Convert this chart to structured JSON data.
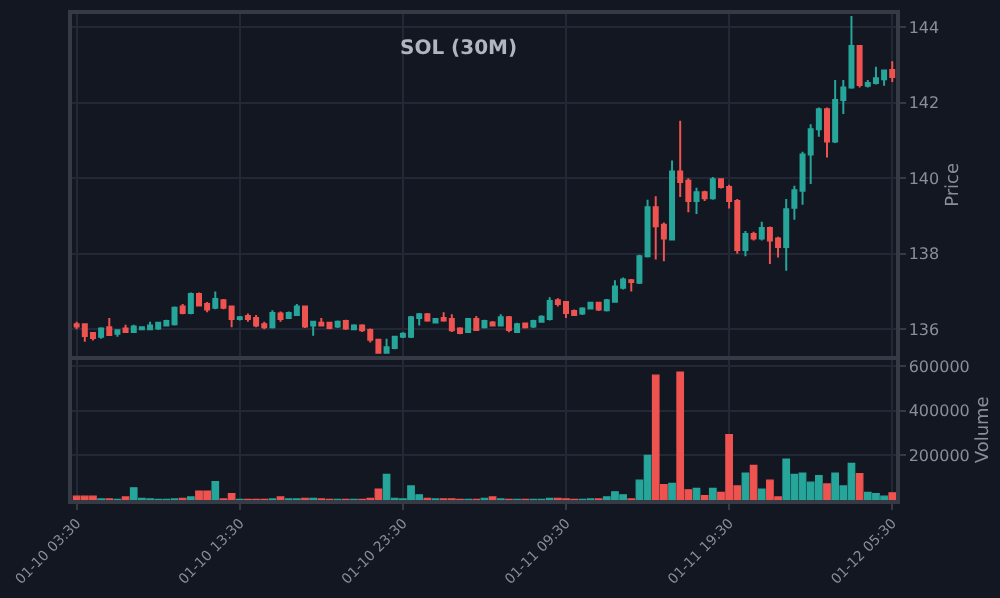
{
  "chart_data": [
    {
      "type": "candlestick",
      "title": "SOL (30M)",
      "ylabel": "Price",
      "ylim": [
        135.3,
        144.35
      ],
      "yticks": [
        136,
        138,
        140,
        142,
        144
      ],
      "grid": true,
      "tick_labels": "y",
      "categories": [
        "01-10 03:30",
        null,
        null,
        null,
        null,
        null,
        null,
        null,
        null,
        null,
        null,
        null,
        null,
        null,
        null,
        null,
        null,
        null,
        null,
        null,
        "01-10 13:30",
        null,
        null,
        null,
        null,
        null,
        null,
        null,
        null,
        null,
        null,
        null,
        null,
        null,
        null,
        null,
        null,
        null,
        null,
        null,
        "01-10 23:30",
        null,
        null,
        null,
        null,
        null,
        null,
        null,
        null,
        null,
        null,
        null,
        null,
        null,
        null,
        null,
        null,
        null,
        null,
        null,
        "01-11 09:30",
        null,
        null,
        null,
        null,
        null,
        null,
        null,
        null,
        null,
        null,
        null,
        null,
        null,
        null,
        null,
        null,
        null,
        null,
        null,
        "01-11 19:30",
        null,
        null,
        null,
        null,
        null,
        null,
        null,
        null,
        null,
        null,
        null,
        null,
        null,
        null,
        null,
        null,
        null,
        null,
        null,
        "01-12 05:30"
      ],
      "ohlc": [
        [
          136.13,
          136.2,
          136.0,
          136.07
        ],
        [
          136.13,
          136.15,
          135.67,
          135.82
        ],
        [
          135.9,
          135.93,
          135.7,
          135.77
        ],
        [
          135.8,
          136.05,
          135.75,
          136.02
        ],
        [
          136.05,
          136.3,
          135.82,
          135.85
        ],
        [
          135.88,
          136.0,
          135.8,
          135.97
        ],
        [
          136.02,
          136.12,
          135.9,
          135.93
        ],
        [
          135.93,
          136.12,
          135.9,
          136.07
        ],
        [
          136.0,
          136.08,
          135.97,
          136.05
        ],
        [
          136.0,
          136.2,
          135.97,
          136.1
        ],
        [
          136.02,
          136.2,
          135.98,
          136.17
        ],
        [
          136.1,
          136.25,
          136.07,
          136.22
        ],
        [
          136.13,
          136.6,
          136.1,
          136.57
        ],
        [
          136.6,
          136.67,
          136.4,
          136.43
        ],
        [
          136.43,
          136.97,
          136.4,
          136.93
        ],
        [
          136.93,
          136.97,
          136.6,
          136.63
        ],
        [
          136.67,
          136.72,
          136.45,
          136.52
        ],
        [
          136.57,
          137.0,
          136.53,
          136.8
        ],
        [
          136.77,
          136.8,
          136.53,
          136.57
        ],
        [
          136.6,
          136.63,
          136.05,
          136.27
        ],
        [
          136.27,
          136.35,
          136.23,
          136.32
        ],
        [
          136.35,
          136.42,
          136.2,
          136.27
        ],
        [
          136.3,
          136.38,
          136.05,
          136.1
        ],
        [
          136.13,
          136.2,
          136.0,
          136.05
        ],
        [
          136.05,
          136.5,
          136.02,
          136.43
        ],
        [
          136.42,
          136.47,
          136.2,
          136.27
        ],
        [
          136.3,
          136.47,
          136.27,
          136.43
        ],
        [
          136.38,
          136.67,
          136.35,
          136.6
        ],
        [
          136.6,
          136.63,
          136.03,
          136.07
        ],
        [
          136.1,
          136.22,
          135.83,
          136.2
        ],
        [
          136.17,
          136.3,
          136.07,
          136.1
        ],
        [
          136.17,
          136.2,
          136.0,
          136.03
        ],
        [
          136.07,
          136.23,
          136.03,
          136.2
        ],
        [
          136.22,
          136.25,
          135.98,
          136.02
        ],
        [
          136.0,
          136.13,
          135.97,
          136.1
        ],
        [
          136.1,
          136.13,
          135.93,
          135.97
        ],
        [
          135.98,
          136.02,
          135.65,
          135.72
        ],
        [
          135.72,
          135.75,
          135.35,
          135.38
        ],
        [
          135.38,
          135.75,
          135.35,
          135.52
        ],
        [
          135.5,
          135.83,
          135.47,
          135.8
        ],
        [
          135.8,
          135.92,
          135.77,
          135.88
        ],
        [
          135.8,
          136.35,
          135.77,
          136.32
        ],
        [
          136.3,
          136.43,
          136.1,
          136.4
        ],
        [
          136.4,
          136.43,
          136.2,
          136.23
        ],
        [
          136.18,
          136.3,
          136.15,
          136.27
        ],
        [
          136.3,
          136.45,
          136.2,
          136.23
        ],
        [
          136.27,
          136.4,
          135.93,
          135.97
        ],
        [
          136.02,
          136.05,
          135.87,
          135.9
        ],
        [
          135.93,
          136.3,
          135.9,
          136.27
        ],
        [
          136.27,
          136.35,
          135.95,
          135.98
        ],
        [
          136.05,
          136.25,
          136.02,
          136.22
        ],
        [
          136.18,
          136.22,
          136.07,
          136.1
        ],
        [
          136.1,
          136.4,
          136.07,
          136.32
        ],
        [
          136.32,
          136.35,
          135.92,
          135.98
        ],
        [
          135.93,
          136.17,
          135.9,
          136.13
        ],
        [
          136.15,
          136.18,
          136.02,
          136.05
        ],
        [
          136.07,
          136.25,
          136.03,
          136.22
        ],
        [
          136.2,
          136.37,
          136.17,
          136.33
        ],
        [
          136.27,
          136.85,
          136.23,
          136.75
        ],
        [
          136.77,
          136.82,
          136.6,
          136.67
        ],
        [
          136.72,
          136.75,
          136.3,
          136.43
        ],
        [
          136.48,
          136.52,
          136.35,
          136.38
        ],
        [
          136.42,
          136.58,
          136.38,
          136.55
        ],
        [
          136.55,
          136.73,
          136.52,
          136.7
        ],
        [
          136.7,
          136.73,
          136.48,
          136.52
        ],
        [
          136.5,
          136.8,
          136.47,
          136.77
        ],
        [
          136.73,
          137.3,
          136.7,
          137.13
        ],
        [
          137.1,
          137.37,
          137.05,
          137.32
        ],
        [
          137.3,
          137.33,
          137.0,
          137.25
        ],
        [
          137.23,
          137.97,
          137.2,
          137.93
        ],
        [
          137.93,
          139.43,
          137.9,
          139.23
        ],
        [
          139.23,
          139.52,
          137.85,
          138.73
        ],
        [
          138.77,
          138.83,
          137.8,
          138.4
        ],
        [
          138.38,
          140.47,
          138.35,
          140.18
        ],
        [
          140.18,
          141.52,
          139.5,
          139.9
        ],
        [
          139.93,
          140.0,
          139.1,
          139.4
        ],
        [
          139.4,
          139.75,
          139.05,
          139.63
        ],
        [
          139.63,
          139.67,
          139.4,
          139.47
        ],
        [
          139.47,
          140.03,
          139.43,
          139.97
        ],
        [
          139.97,
          140.0,
          139.73,
          139.77
        ],
        [
          139.77,
          139.83,
          139.2,
          139.4
        ],
        [
          139.4,
          139.45,
          138.0,
          138.1
        ],
        [
          138.1,
          138.6,
          137.93,
          138.52
        ],
        [
          138.52,
          138.58,
          138.35,
          138.4
        ],
        [
          138.4,
          138.85,
          138.35,
          138.68
        ],
        [
          138.68,
          138.72,
          137.73,
          138.35
        ],
        [
          138.4,
          138.45,
          137.9,
          138.18
        ],
        [
          138.18,
          139.45,
          137.55,
          139.18
        ],
        [
          139.22,
          139.8,
          138.9,
          139.68
        ],
        [
          139.67,
          140.7,
          139.3,
          140.63
        ],
        [
          140.63,
          141.43,
          139.85,
          141.3
        ],
        [
          141.3,
          141.87,
          141.1,
          141.83
        ],
        [
          141.83,
          141.87,
          140.55,
          140.97
        ],
        [
          140.97,
          142.6,
          140.93,
          142.07
        ],
        [
          142.07,
          142.6,
          141.7,
          142.4
        ],
        [
          142.4,
          144.3,
          142.37,
          143.5
        ],
        [
          143.5,
          143.53,
          142.4,
          142.47
        ],
        [
          142.45,
          142.6,
          142.4,
          142.52
        ],
        [
          142.52,
          142.95,
          142.48,
          142.65
        ],
        [
          142.62,
          142.88,
          142.45,
          142.85
        ],
        [
          142.87,
          143.1,
          142.55,
          142.68
        ]
      ],
      "colors": [
        "#ef5350",
        "#ef5350",
        "#ef5350",
        "#26a69a",
        "#ef5350",
        "#26a69a",
        "#ef5350",
        "#26a69a",
        "#26a69a",
        "#26a69a",
        "#26a69a",
        "#26a69a",
        "#26a69a",
        "#ef5350",
        "#26a69a",
        "#ef5350",
        "#ef5350",
        "#26a69a",
        "#ef5350",
        "#ef5350",
        "#26a69a",
        "#ef5350",
        "#ef5350",
        "#ef5350",
        "#26a69a",
        "#ef5350",
        "#26a69a",
        "#26a69a",
        "#ef5350",
        "#26a69a",
        "#ef5350",
        "#ef5350",
        "#26a69a",
        "#ef5350",
        "#26a69a",
        "#ef5350",
        "#ef5350",
        "#ef5350",
        "#26a69a",
        "#26a69a",
        "#26a69a",
        "#26a69a",
        "#26a69a",
        "#ef5350",
        "#26a69a",
        "#ef5350",
        "#ef5350",
        "#ef5350",
        "#26a69a",
        "#ef5350",
        "#26a69a",
        "#ef5350",
        "#26a69a",
        "#ef5350",
        "#26a69a",
        "#ef5350",
        "#26a69a",
        "#26a69a",
        "#26a69a",
        "#ef5350",
        "#ef5350",
        "#ef5350",
        "#26a69a",
        "#26a69a",
        "#ef5350",
        "#26a69a",
        "#26a69a",
        "#26a69a",
        "#ef5350",
        "#26a69a",
        "#26a69a",
        "#ef5350",
        "#ef5350",
        "#26a69a",
        "#ef5350",
        "#ef5350",
        "#26a69a",
        "#ef5350",
        "#26a69a",
        "#ef5350",
        "#ef5350",
        "#ef5350",
        "#26a69a",
        "#ef5350",
        "#26a69a",
        "#ef5350",
        "#ef5350",
        "#26a69a",
        "#26a69a",
        "#26a69a",
        "#26a69a",
        "#26a69a",
        "#ef5350",
        "#26a69a",
        "#26a69a",
        "#26a69a",
        "#ef5350",
        "#26a69a",
        "#26a69a",
        "#26a69a",
        "#ef5350"
      ]
    },
    {
      "type": "bar",
      "ylabel": "Volume",
      "ylim": [
        0,
        630000
      ],
      "yticks": [
        200000,
        400000,
        600000
      ],
      "grid": true,
      "categories": [
        "01-10 03:30",
        null,
        null,
        null,
        null,
        null,
        null,
        null,
        null,
        null,
        null,
        null,
        null,
        null,
        null,
        null,
        null,
        null,
        null,
        null,
        "01-10 13:30",
        null,
        null,
        null,
        null,
        null,
        null,
        null,
        null,
        null,
        null,
        null,
        null,
        null,
        null,
        null,
        null,
        null,
        null,
        null,
        "01-10 23:30",
        null,
        null,
        null,
        null,
        null,
        null,
        null,
        null,
        null,
        null,
        null,
        null,
        null,
        null,
        null,
        null,
        null,
        null,
        null,
        "01-11 09:30",
        null,
        null,
        null,
        null,
        null,
        null,
        null,
        null,
        null,
        null,
        null,
        null,
        null,
        null,
        null,
        null,
        null,
        null,
        null,
        "01-11 19:30",
        null,
        null,
        null,
        null,
        null,
        null,
        null,
        null,
        null,
        null,
        null,
        null,
        null,
        null,
        null,
        null,
        null,
        null,
        null,
        "01-12 05:30"
      ],
      "values": [
        17000,
        17000,
        17000,
        5000,
        5000,
        3000,
        14000,
        55000,
        8000,
        5000,
        3000,
        3000,
        5000,
        8000,
        14000,
        40000,
        40000,
        83000,
        5000,
        29000,
        3000,
        3000,
        3000,
        3000,
        5000,
        14000,
        5000,
        5000,
        8000,
        8000,
        5000,
        3000,
        3000,
        3000,
        3000,
        3000,
        8000,
        49000,
        115000,
        8000,
        5000,
        63000,
        23000,
        8000,
        5000,
        5000,
        5000,
        3000,
        3000,
        3000,
        8000,
        14000,
        5000,
        3000,
        3000,
        3000,
        3000,
        3000,
        8000,
        8000,
        5000,
        3000,
        3000,
        5000,
        5000,
        14000,
        37000,
        23000,
        5000,
        89000,
        200000,
        560000,
        69000,
        75000,
        574000,
        46000,
        52000,
        20000,
        52000,
        34000,
        293000,
        63000,
        121000,
        155000,
        49000,
        89000,
        14000,
        184000,
        115000,
        121000,
        80000,
        109000,
        72000,
        121000,
        63000,
        164000,
        118000,
        34000,
        29000,
        17000,
        32000
      ],
      "colors": [
        "#ef5350",
        "#ef5350",
        "#ef5350",
        "#26a69a",
        "#ef5350",
        "#26a69a",
        "#ef5350",
        "#26a69a",
        "#26a69a",
        "#26a69a",
        "#26a69a",
        "#26a69a",
        "#26a69a",
        "#ef5350",
        "#26a69a",
        "#ef5350",
        "#ef5350",
        "#26a69a",
        "#ef5350",
        "#ef5350",
        "#26a69a",
        "#ef5350",
        "#ef5350",
        "#ef5350",
        "#26a69a",
        "#ef5350",
        "#26a69a",
        "#26a69a",
        "#ef5350",
        "#26a69a",
        "#ef5350",
        "#ef5350",
        "#26a69a",
        "#ef5350",
        "#26a69a",
        "#ef5350",
        "#ef5350",
        "#ef5350",
        "#26a69a",
        "#26a69a",
        "#26a69a",
        "#26a69a",
        "#26a69a",
        "#ef5350",
        "#26a69a",
        "#ef5350",
        "#ef5350",
        "#ef5350",
        "#26a69a",
        "#ef5350",
        "#26a69a",
        "#ef5350",
        "#26a69a",
        "#ef5350",
        "#26a69a",
        "#ef5350",
        "#26a69a",
        "#26a69a",
        "#26a69a",
        "#ef5350",
        "#ef5350",
        "#ef5350",
        "#26a69a",
        "#26a69a",
        "#ef5350",
        "#26a69a",
        "#26a69a",
        "#26a69a",
        "#ef5350",
        "#26a69a",
        "#26a69a",
        "#ef5350",
        "#ef5350",
        "#26a69a",
        "#ef5350",
        "#ef5350",
        "#26a69a",
        "#ef5350",
        "#26a69a",
        "#ef5350",
        "#ef5350",
        "#ef5350",
        "#26a69a",
        "#ef5350",
        "#26a69a",
        "#ef5350",
        "#ef5350",
        "#26a69a",
        "#26a69a",
        "#26a69a",
        "#26a69a",
        "#26a69a",
        "#ef5350",
        "#26a69a",
        "#26a69a",
        "#26a69a",
        "#ef5350",
        "#26a69a",
        "#26a69a",
        "#26a69a",
        "#ef5350"
      ]
    }
  ]
}
